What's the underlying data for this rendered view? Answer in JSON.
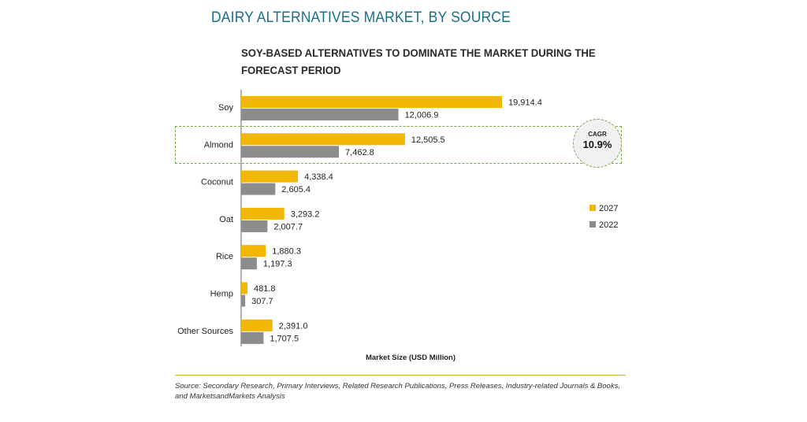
{
  "title": "DAIRY ALTERNATIVES MARKET, BY SOURCE",
  "subtitle": "SOY-BASED ALTERNATIVES TO DOMINATE THE MARKET DURING THE FORECAST PERIOD",
  "source": "Source: Secondary Research, Primary Interviews, Related Research Publications, Press Releases, Industry-related Journals & Books, and MarketsandMarkets Analysis",
  "callout": {
    "label": "CAGR",
    "value": "10.9%",
    "category": "Almond"
  },
  "colors": {
    "2027": "#f2b705",
    "2022": "#8c8c8c",
    "accent": "#1a6f8a",
    "highlight": "#7aa64a"
  },
  "chart_data": {
    "type": "bar",
    "orientation": "horizontal",
    "xlabel": "Market Size (USD Million)",
    "categories": [
      "Soy",
      "Almond",
      "Coconut",
      "Oat",
      "Rice",
      "Hemp",
      "Other Sources"
    ],
    "series": [
      {
        "name": "2027",
        "values": [
          19914.4,
          12505.5,
          4338.4,
          3293.2,
          1880.3,
          481.8,
          2391.0
        ],
        "labels": [
          "19,914.4",
          "12,505.5",
          "4,338.4",
          "3,293.2",
          "1,880.3",
          "481.8",
          "2,391.0"
        ]
      },
      {
        "name": "2022",
        "values": [
          12006.9,
          7462.8,
          2605.4,
          2007.7,
          1197.3,
          307.7,
          1707.5
        ],
        "labels": [
          "12,006.9",
          "7,462.8",
          "2,605.4",
          "2,007.7",
          "1,197.3",
          "307.7",
          "1,707.5"
        ]
      }
    ],
    "xlim": [
      0,
      20000
    ],
    "legend": "right",
    "grid": false
  }
}
